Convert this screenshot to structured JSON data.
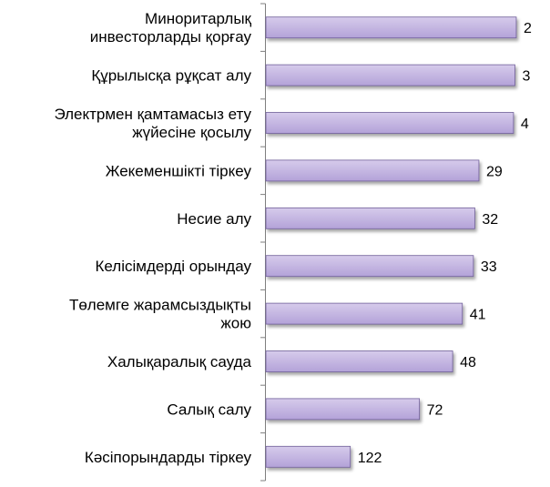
{
  "chart_data": {
    "type": "bar",
    "orientation": "horizontal",
    "categories": [
      [
        "Миноритарлық",
        "инвесторларды қорғау"
      ],
      [
        "Құрылысқа рұқсат алу"
      ],
      [
        "Электрмен қамтамасыз ету",
        "жүйесіне қосылу"
      ],
      [
        "Жекеменшікті тіркеу"
      ],
      [
        "Несие алу"
      ],
      [
        "Келісімдерді орындау"
      ],
      [
        "Төлемге жарамсыздықты",
        "жою"
      ],
      [
        "Халықаралық сауда"
      ],
      [
        "Салық салу"
      ],
      [
        "Кәсіпорындарды тіркеу"
      ]
    ],
    "values": [
      2,
      3,
      4,
      29,
      32,
      33,
      41,
      48,
      72,
      122
    ],
    "value_labels": [
      "2",
      "3",
      "4",
      "29",
      "32",
      "33",
      "41",
      "48",
      "72",
      "122"
    ],
    "axis": "reversed",
    "xlim": [
      0,
      185
    ],
    "grid": false,
    "legend": "none",
    "colors": {
      "bar_fill_top": "#d6cbeb",
      "bar_fill_bottom": "#b3a2d8",
      "bar_stroke": "#6f5e99",
      "bar_shadow": "#9a9a9a",
      "axis": "#7f7f7f"
    }
  }
}
